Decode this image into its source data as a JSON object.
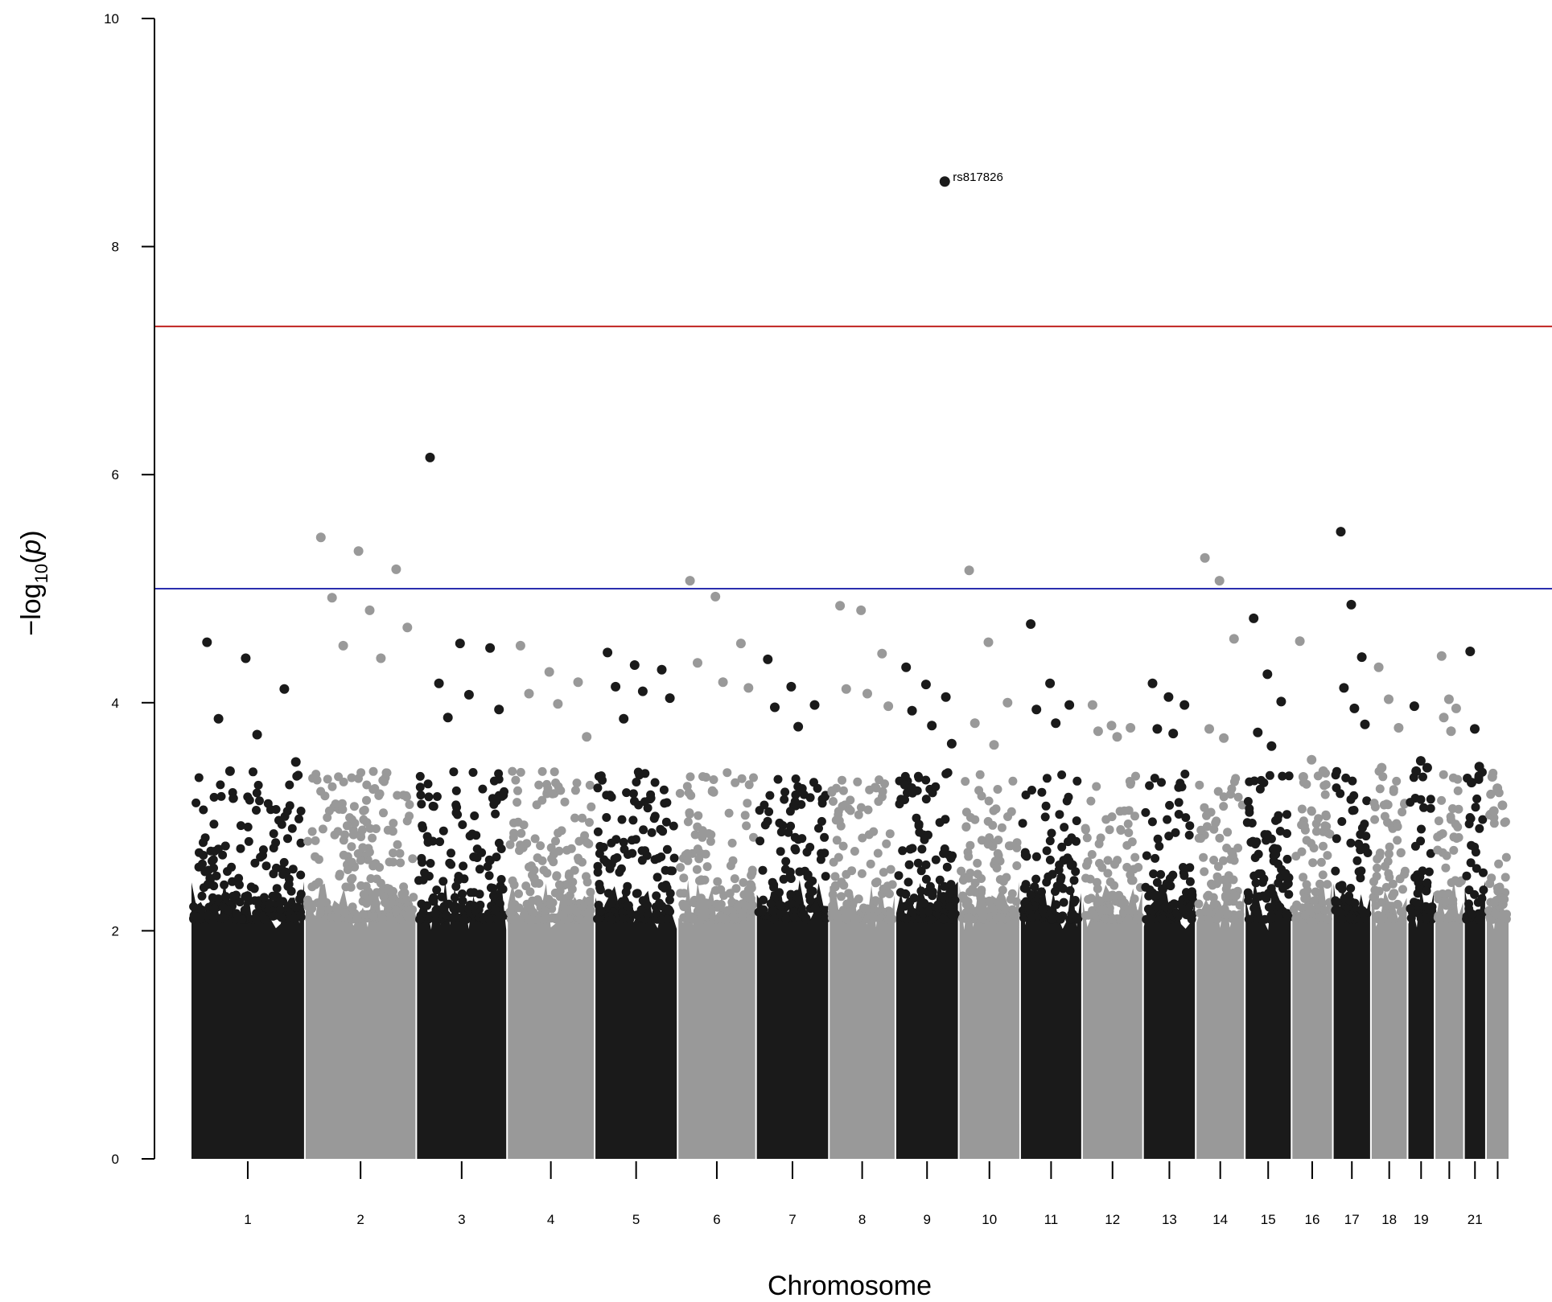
{
  "chart_data": {
    "type": "scatter",
    "title": "",
    "xlabel": "Chromosome",
    "ylabel_prefix": "−log",
    "ylabel_sub": "10",
    "ylabel_arg": "p",
    "ylim": [
      0,
      10
    ],
    "y_ticks": [
      "0",
      "2",
      "4",
      "6",
      "8",
      "10"
    ],
    "y_tick_values": [
      0,
      2,
      4,
      6,
      8,
      10
    ],
    "grid": false,
    "legend": "none",
    "colors": {
      "odd": "#1a1a1a",
      "even": "#999999"
    },
    "thresholds": [
      {
        "value": 7.3,
        "color": "#c0221f"
      },
      {
        "value": 5.0,
        "color": "#2b2fae"
      }
    ],
    "chromosomes": [
      {
        "chr": 1,
        "label": "1",
        "length": 249,
        "top": [
          4.53,
          4.39,
          4.12,
          3.86,
          3.72,
          3.48,
          3.4
        ]
      },
      {
        "chr": 2,
        "label": "2",
        "length": 243,
        "top": [
          5.45,
          5.33,
          5.17,
          4.92,
          4.81,
          4.66,
          4.5,
          4.39
        ]
      },
      {
        "chr": 3,
        "label": "3",
        "length": 198,
        "top": [
          6.15,
          4.52,
          4.48,
          4.17,
          4.07,
          3.94,
          3.87
        ]
      },
      {
        "chr": 4,
        "label": "4",
        "length": 191,
        "top": [
          4.5,
          4.27,
          4.18,
          4.08,
          3.99,
          3.7
        ]
      },
      {
        "chr": 5,
        "label": "5",
        "length": 181,
        "top": [
          4.44,
          4.33,
          4.29,
          4.14,
          4.1,
          4.04,
          3.86
        ]
      },
      {
        "chr": 6,
        "label": "6",
        "length": 171,
        "top": [
          5.07,
          4.93,
          4.52,
          4.35,
          4.18,
          4.13
        ]
      },
      {
        "chr": 7,
        "label": "7",
        "length": 159,
        "top": [
          4.38,
          4.14,
          3.98,
          3.96,
          3.79
        ]
      },
      {
        "chr": 8,
        "label": "8",
        "length": 145,
        "top": [
          4.85,
          4.81,
          4.43,
          4.12,
          4.08,
          3.97
        ]
      },
      {
        "chr": 9,
        "label": "9",
        "length": 138,
        "top": [
          4.31,
          4.16,
          4.05,
          3.93,
          3.8,
          3.64
        ]
      },
      {
        "chr": 10,
        "label": "10",
        "length": 134,
        "top": [
          5.16,
          4.53,
          4.0,
          3.82,
          3.63
        ]
      },
      {
        "chr": 11,
        "label": "11",
        "length": 135,
        "top": [
          4.69,
          4.17,
          3.98,
          3.94,
          3.82
        ]
      },
      {
        "chr": 12,
        "label": "12",
        "length": 133,
        "top": [
          3.98,
          3.8,
          3.78,
          3.75,
          3.7
        ]
      },
      {
        "chr": 13,
        "label": "13",
        "length": 115,
        "top": [
          4.17,
          4.05,
          3.98,
          3.77,
          3.73
        ]
      },
      {
        "chr": 14,
        "label": "14",
        "length": 107,
        "top": [
          5.27,
          5.07,
          4.56,
          3.77,
          3.69
        ]
      },
      {
        "chr": 15,
        "label": "15",
        "length": 102,
        "top": [
          4.74,
          4.25,
          4.01,
          3.74,
          3.62
        ]
      },
      {
        "chr": 16,
        "label": "16",
        "length": 90,
        "top": [
          4.54,
          3.5,
          3.4,
          3.35
        ]
      },
      {
        "chr": 17,
        "label": "17",
        "length": 83,
        "top": [
          5.5,
          4.86,
          4.4,
          4.13,
          3.95,
          3.81
        ]
      },
      {
        "chr": 18,
        "label": "18",
        "length": 80,
        "top": [
          4.31,
          4.03,
          3.78,
          3.43
        ]
      },
      {
        "chr": 19,
        "label": "19",
        "length": 59,
        "top": [
          3.97,
          3.49,
          3.43,
          3.4
        ]
      },
      {
        "chr": 20,
        "label": "",
        "length": 64,
        "top": [
          4.41,
          4.03,
          3.95,
          3.87,
          3.75
        ]
      },
      {
        "chr": 21,
        "label": "21",
        "length": 48,
        "top": [
          4.45,
          3.77,
          3.44,
          3.3
        ]
      },
      {
        "chr": 22,
        "label": "",
        "length": 51,
        "top": [
          3.35,
          3.25,
          3.1,
          3.05
        ]
      }
    ],
    "annotations": [
      {
        "label": "rs817826",
        "chr": 9,
        "position": 0.78,
        "value": 8.57
      }
    ]
  }
}
